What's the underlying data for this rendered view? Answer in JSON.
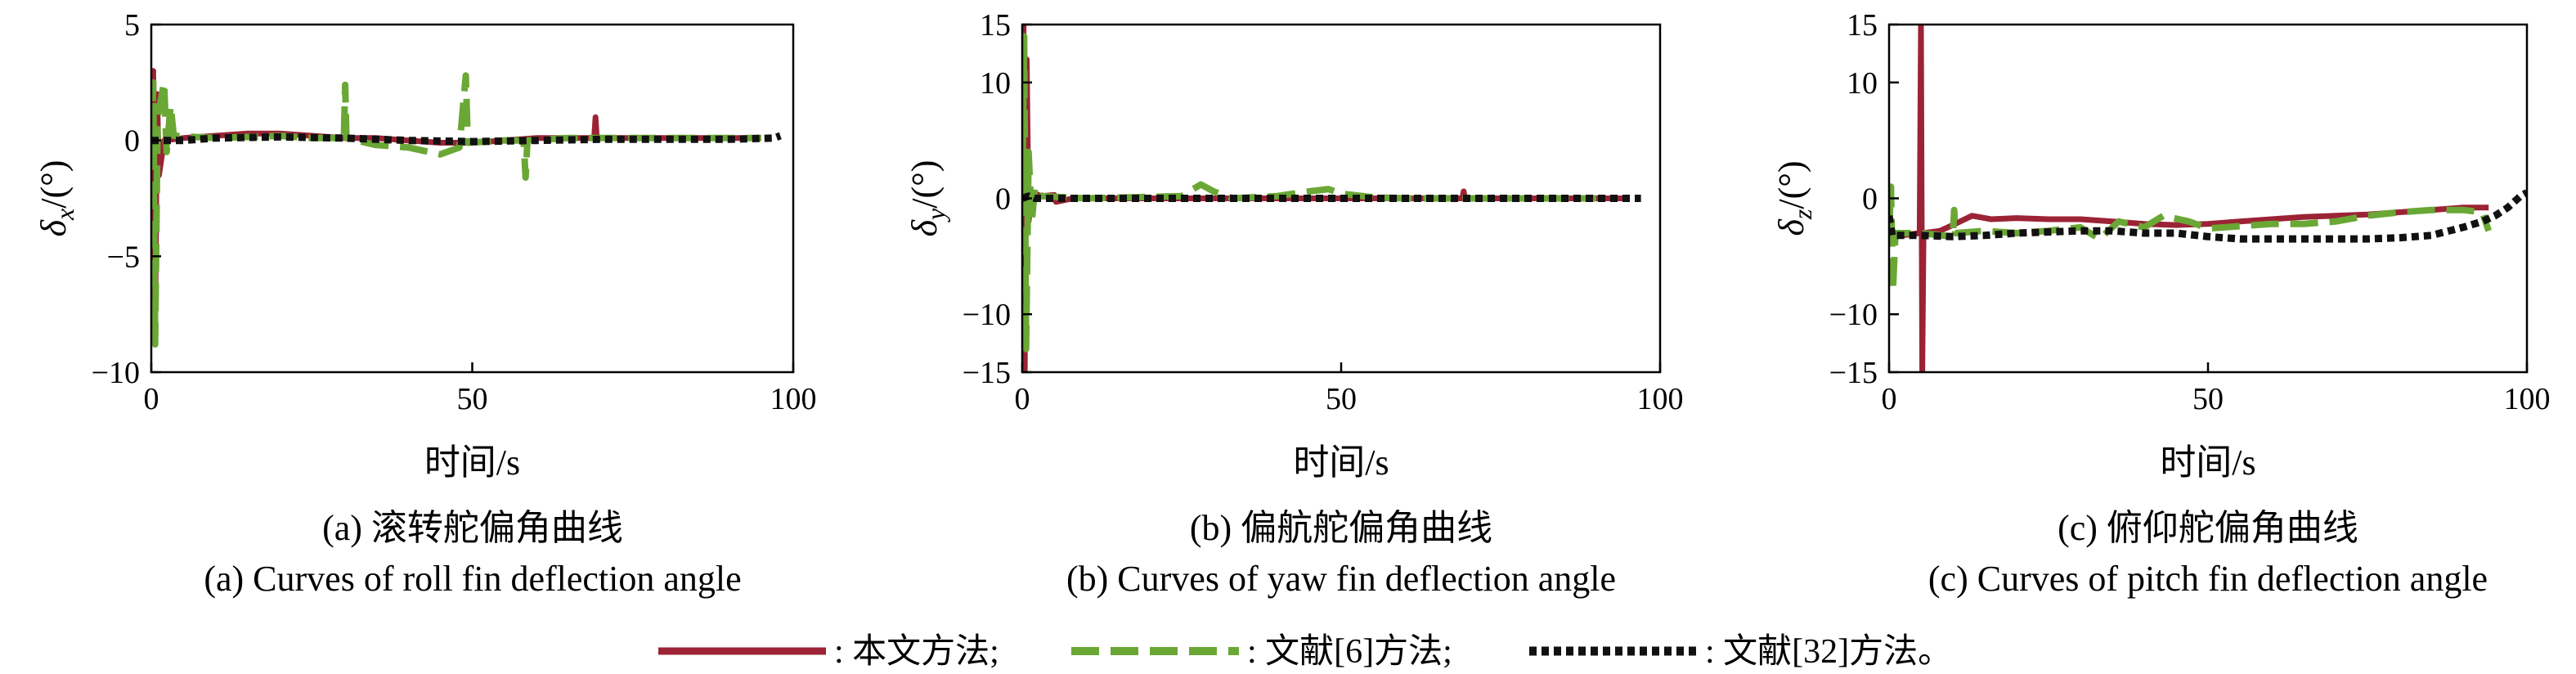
{
  "legend": [
    {
      "label": ": 本文方法;",
      "color": "#9b2335",
      "style": "solid"
    },
    {
      "label": ": 文献[6]方法;",
      "color": "#6aa735",
      "style": "dash"
    },
    {
      "label": ": 文献[32]方法。",
      "color": "#111111",
      "style": "dot"
    }
  ],
  "chart_data": [
    {
      "type": "line",
      "id": "a",
      "caption_cn": "(a) 滚转舵偏角曲线",
      "caption_en": "(a) Curves of roll fin deflection angle",
      "xlabel": "时间/s",
      "ylabel": "δx/(°)",
      "ylabel_symbol": "δ",
      "ylabel_sub": "x",
      "ylabel_rest": "/(°)",
      "xlim": [
        0,
        100
      ],
      "ylim": [
        -10,
        5
      ],
      "xticks": [
        0,
        50,
        100
      ],
      "yticks": [
        5,
        0,
        -5,
        -10
      ],
      "ytick_labels": [
        "5",
        "0",
        "−5",
        "−10"
      ],
      "series": [
        {
          "name": "本文方法",
          "color": "#9b2335",
          "style": "solid",
          "points": [
            [
              0,
              0
            ],
            [
              0.3,
              3
            ],
            [
              0.6,
              -8.5
            ],
            [
              0.9,
              2
            ],
            [
              1.2,
              -1.5
            ],
            [
              2,
              0
            ],
            [
              5,
              0.1
            ],
            [
              10,
              0.2
            ],
            [
              15,
              0.3
            ],
            [
              20,
              0.3
            ],
            [
              25,
              0.2
            ],
            [
              30,
              0.1
            ],
            [
              35,
              0.1
            ],
            [
              40,
              0.0
            ],
            [
              45,
              -0.1
            ],
            [
              50,
              -0.1
            ],
            [
              55,
              0.0
            ],
            [
              60,
              0.1
            ],
            [
              65,
              0.1
            ],
            [
              69,
              0.1
            ],
            [
              69.2,
              1.0
            ],
            [
              69.4,
              0.1
            ],
            [
              75,
              0.1
            ],
            [
              85,
              0.1
            ],
            [
              95,
              0.1
            ]
          ]
        },
        {
          "name": "文献[6]方法",
          "color": "#6aa735",
          "style": "dash",
          "points": [
            [
              0,
              0
            ],
            [
              0.3,
              2.5
            ],
            [
              0.6,
              -8.8
            ],
            [
              1,
              1
            ],
            [
              2,
              2.5
            ],
            [
              2.4,
              -0.5
            ],
            [
              3,
              1.5
            ],
            [
              3.5,
              0.2
            ],
            [
              10,
              0.1
            ],
            [
              20,
              0.2
            ],
            [
              25,
              0.1
            ],
            [
              30,
              0.1
            ],
            [
              30.2,
              2.4
            ],
            [
              30.4,
              0.1
            ],
            [
              35,
              -0.2
            ],
            [
              40,
              -0.3
            ],
            [
              45,
              -0.6
            ],
            [
              48,
              -0.3
            ],
            [
              49,
              2.8
            ],
            [
              49.3,
              -0.1
            ],
            [
              55,
              0.0
            ],
            [
              58,
              0.0
            ],
            [
              58.3,
              -1.6
            ],
            [
              58.6,
              0.0
            ],
            [
              65,
              0.1
            ],
            [
              75,
              0.1
            ],
            [
              85,
              0.1
            ],
            [
              95,
              0.1
            ]
          ]
        },
        {
          "name": "文献[32]方法",
          "color": "#111111",
          "style": "dot",
          "points": [
            [
              0,
              0
            ],
            [
              5,
              0.0
            ],
            [
              10,
              0.1
            ],
            [
              20,
              0.15
            ],
            [
              30,
              0.1
            ],
            [
              40,
              0.0
            ],
            [
              50,
              -0.05
            ],
            [
              60,
              0.0
            ],
            [
              70,
              0.05
            ],
            [
              80,
              0.05
            ],
            [
              90,
              0.05
            ],
            [
              97,
              0.1
            ],
            [
              98,
              0.2
            ]
          ]
        }
      ]
    },
    {
      "type": "line",
      "id": "b",
      "caption_cn": "(b) 偏航舵偏角曲线",
      "caption_en": "(b) Curves of yaw fin deflection angle",
      "xlabel": "时间/s",
      "ylabel": "δy/(°)",
      "ylabel_symbol": "δ",
      "ylabel_sub": "y",
      "ylabel_rest": "/(°)",
      "xlim": [
        0,
        100
      ],
      "ylim": [
        -15,
        15
      ],
      "xticks": [
        0,
        50,
        100
      ],
      "yticks": [
        15,
        10,
        0,
        -10,
        -15
      ],
      "ytick_labels": [
        "15",
        "10",
        "0",
        "−10",
        "−15"
      ],
      "series": [
        {
          "name": "本文方法",
          "color": "#9b2335",
          "style": "solid",
          "points": [
            [
              0,
              0
            ],
            [
              0.2,
              15
            ],
            [
              0.4,
              -15
            ],
            [
              0.7,
              12
            ],
            [
              1,
              -2
            ],
            [
              1.5,
              0.5
            ],
            [
              3,
              0.2
            ],
            [
              5,
              0.3
            ],
            [
              5.3,
              -0.3
            ],
            [
              8,
              0.0
            ],
            [
              20,
              0.0
            ],
            [
              40,
              0.0
            ],
            [
              60,
              0.0
            ],
            [
              69,
              0.0
            ],
            [
              69.2,
              0.6
            ],
            [
              69.4,
              0.0
            ],
            [
              80,
              0.0
            ],
            [
              95,
              0.0
            ]
          ]
        },
        {
          "name": "文献[6]方法",
          "color": "#6aa735",
          "style": "dash",
          "points": [
            [
              0,
              0
            ],
            [
              0.3,
              14
            ],
            [
              0.6,
              -13
            ],
            [
              1,
              4
            ],
            [
              1.5,
              -2
            ],
            [
              2,
              1
            ],
            [
              3,
              0.2
            ],
            [
              10,
              0.0
            ],
            [
              25,
              0.2
            ],
            [
              28,
              1.2
            ],
            [
              30,
              0.6
            ],
            [
              33,
              0.0
            ],
            [
              40,
              0.2
            ],
            [
              45,
              0.6
            ],
            [
              48,
              0.8
            ],
            [
              50,
              0.4
            ],
            [
              55,
              0.1
            ],
            [
              60,
              0.0
            ],
            [
              75,
              0.0
            ],
            [
              90,
              0.0
            ]
          ]
        },
        {
          "name": "文献[32]方法",
          "color": "#111111",
          "style": "dot",
          "points": [
            [
              0,
              0
            ],
            [
              1,
              0.2
            ],
            [
              2,
              0.0
            ],
            [
              10,
              0.0
            ],
            [
              30,
              0.0
            ],
            [
              50,
              0.0
            ],
            [
              70,
              0.0
            ],
            [
              90,
              0.0
            ],
            [
              97,
              0.0
            ]
          ]
        }
      ]
    },
    {
      "type": "line",
      "id": "c",
      "caption_cn": "(c) 俯仰舵偏角曲线",
      "caption_en": "(c) Curves of pitch fin deflection angle",
      "xlabel": "时间/s",
      "ylabel": "δz/(°)",
      "ylabel_symbol": "δ",
      "ylabel_sub": "z",
      "ylabel_rest": "/(°)",
      "xlim": [
        0,
        100
      ],
      "ylim": [
        -15,
        15
      ],
      "xticks": [
        0,
        50,
        100
      ],
      "yticks": [
        15,
        10,
        0,
        -10,
        -15
      ],
      "ytick_labels": [
        "15",
        "10",
        "0",
        "−10",
        "−15"
      ],
      "series": [
        {
          "name": "本文方法",
          "color": "#9b2335",
          "style": "solid",
          "points": [
            [
              0,
              -3
            ],
            [
              2,
              -3.2
            ],
            [
              4.8,
              -3
            ],
            [
              5,
              15
            ],
            [
              5.2,
              -15
            ],
            [
              5.4,
              -3
            ],
            [
              8,
              -2.8
            ],
            [
              10,
              -2.3
            ],
            [
              13,
              -1.5
            ],
            [
              16,
              -1.8
            ],
            [
              20,
              -1.7
            ],
            [
              25,
              -1.8
            ],
            [
              30,
              -1.8
            ],
            [
              35,
              -2.0
            ],
            [
              40,
              -2.2
            ],
            [
              45,
              -2.3
            ],
            [
              50,
              -2.2
            ],
            [
              55,
              -2.0
            ],
            [
              60,
              -1.8
            ],
            [
              65,
              -1.6
            ],
            [
              70,
              -1.5
            ],
            [
              75,
              -1.4
            ],
            [
              80,
              -1.2
            ],
            [
              85,
              -1.0
            ],
            [
              90,
              -0.8
            ],
            [
              94,
              -0.8
            ]
          ]
        },
        {
          "name": "文献[6]方法",
          "color": "#6aa735",
          "style": "dash",
          "points": [
            [
              0,
              -3
            ],
            [
              0.3,
              1
            ],
            [
              0.6,
              -8
            ],
            [
              1,
              -3
            ],
            [
              5,
              -3
            ],
            [
              10,
              -3.3
            ],
            [
              10.2,
              -1
            ],
            [
              10.4,
              -3
            ],
            [
              15,
              -2.8
            ],
            [
              20,
              -3
            ],
            [
              25,
              -2.8
            ],
            [
              30,
              -2.5
            ],
            [
              33,
              -3.5
            ],
            [
              36,
              -2
            ],
            [
              40,
              -2.5
            ],
            [
              43,
              -1.5
            ],
            [
              47,
              -2.0
            ],
            [
              50,
              -2.6
            ],
            [
              55,
              -2.4
            ],
            [
              60,
              -2.2
            ],
            [
              65,
              -2.2
            ],
            [
              70,
              -2
            ],
            [
              75,
              -1.5
            ],
            [
              80,
              -1.2
            ],
            [
              85,
              -1.0
            ],
            [
              90,
              -1.0
            ],
            [
              93,
              -1.2
            ],
            [
              94,
              -2.8
            ]
          ]
        },
        {
          "name": "文献[32]方法",
          "color": "#111111",
          "style": "dot",
          "points": [
            [
              0,
              -1.5
            ],
            [
              0.5,
              -3.2
            ],
            [
              5,
              -3.2
            ],
            [
              10,
              -3.3
            ],
            [
              15,
              -3.2
            ],
            [
              20,
              -3.0
            ],
            [
              25,
              -2.9
            ],
            [
              30,
              -2.8
            ],
            [
              35,
              -2.8
            ],
            [
              40,
              -3.0
            ],
            [
              45,
              -3.0
            ],
            [
              50,
              -3.3
            ],
            [
              55,
              -3.5
            ],
            [
              60,
              -3.5
            ],
            [
              65,
              -3.5
            ],
            [
              70,
              -3.5
            ],
            [
              75,
              -3.5
            ],
            [
              80,
              -3.4
            ],
            [
              85,
              -3.2
            ],
            [
              90,
              -2.5
            ],
            [
              93,
              -2.0
            ],
            [
              95,
              -1.5
            ],
            [
              97,
              -0.8
            ],
            [
              99,
              0.2
            ],
            [
              100,
              0.5
            ]
          ]
        }
      ]
    }
  ]
}
